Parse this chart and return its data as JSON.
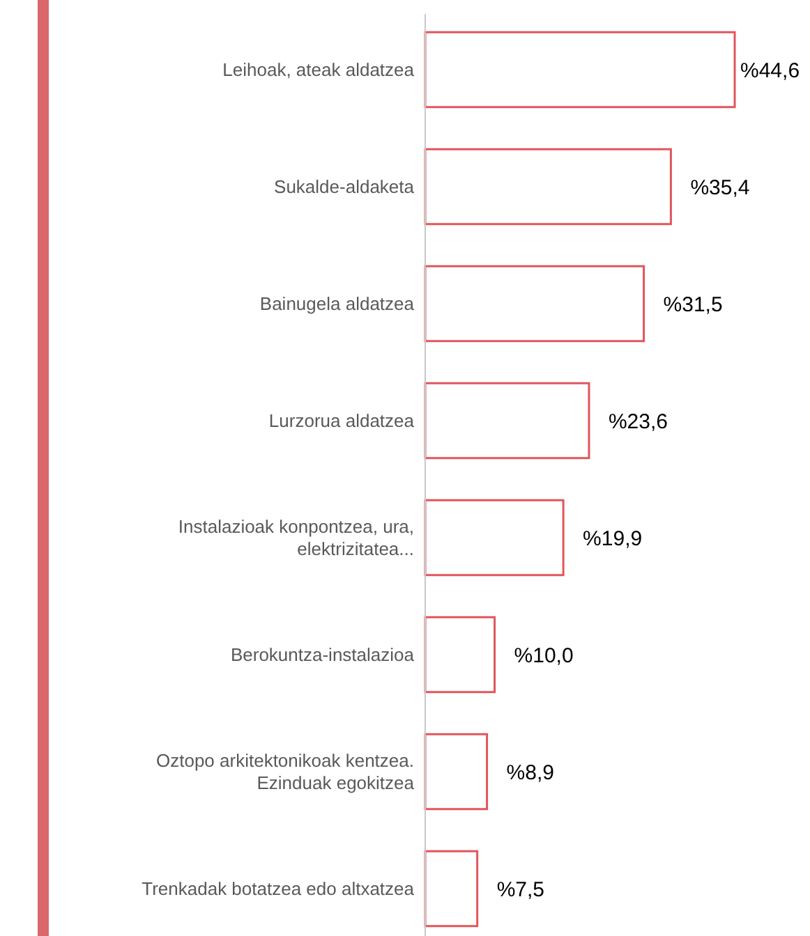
{
  "chart_data": {
    "type": "bar",
    "orientation": "horizontal",
    "categories": [
      "Leihoak, ateak aldatzea",
      "Sukalde-aldaketa",
      "Bainugela aldatzea",
      "Lurzorua aldatzea",
      "Instalazioak konpontzea, ura, elektrizitatea...",
      "Berokuntza-instalazioa",
      "Oztopo arkitektonikoak kentzea. Ezinduak egokitzea",
      "Trenkadak botatzea edo altxatzea"
    ],
    "values": [
      44.6,
      35.4,
      31.5,
      23.6,
      19.9,
      10.0,
      8.9,
      7.5
    ],
    "value_labels": [
      "%44,6",
      "%35,4",
      "%31,5",
      "%23,6",
      "%19,9",
      "%10,0",
      "%8,9",
      "%7,5"
    ],
    "color": "#e0565b"
  }
}
